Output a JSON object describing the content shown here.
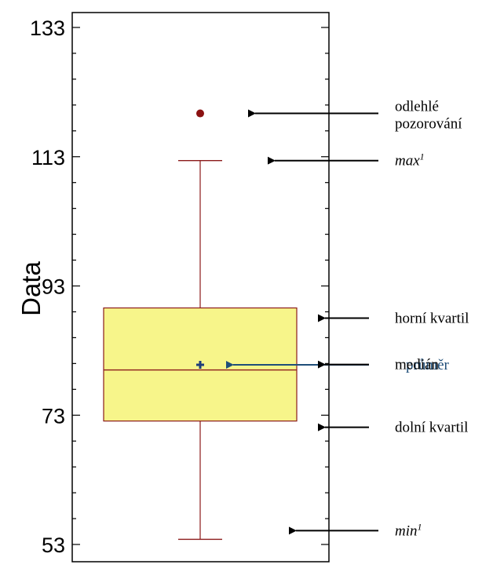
{
  "chart_data": {
    "type": "box",
    "ylabel": "Data",
    "ylim": [
      51,
      135
    ],
    "yticks": [
      53,
      73,
      93,
      113,
      133
    ],
    "ytick_labels": [
      "53",
      "73",
      "93",
      "113",
      "133"
    ],
    "minor_tick_step": 4,
    "box": {
      "min": 53.8,
      "q1": 72.1,
      "median": 80.0,
      "mean": 80.8,
      "q3": 89.6,
      "max": 112.4,
      "outliers": [
        119.7
      ]
    },
    "colors": {
      "box_fill": "#f7f58a",
      "box_stroke": "#8b1a1a",
      "whisker": "#8b1a1a",
      "outlier": "#8b1111",
      "mean_marker": "#1f3d7a",
      "arrow_black": "#000000",
      "arrow_blue": "#1f4e79"
    },
    "annotations": [
      {
        "key": "outlier",
        "lines": [
          "odlehlé",
          "pozorování"
        ],
        "y": 119.7,
        "style": "normal",
        "color": "black"
      },
      {
        "key": "max",
        "text": "max",
        "sup": "1",
        "y": 112.4,
        "style": "italic",
        "color": "black"
      },
      {
        "key": "q3",
        "lines": [
          "horní kvartil"
        ],
        "y": 89.6,
        "style": "normal",
        "color": "black"
      },
      {
        "key": "mean",
        "lines": [
          "průměr"
        ],
        "y": 80.8,
        "style": "normal",
        "color": "blue"
      },
      {
        "key": "median",
        "lines": [
          "medián"
        ],
        "y": 80.0,
        "style": "normal",
        "color": "black"
      },
      {
        "key": "q1",
        "lines": [
          "dolní kvartil"
        ],
        "y": 72.1,
        "style": "normal",
        "color": "black"
      },
      {
        "key": "min",
        "text": "min",
        "sup": "1",
        "y": 53.8,
        "style": "italic",
        "color": "black"
      }
    ]
  }
}
